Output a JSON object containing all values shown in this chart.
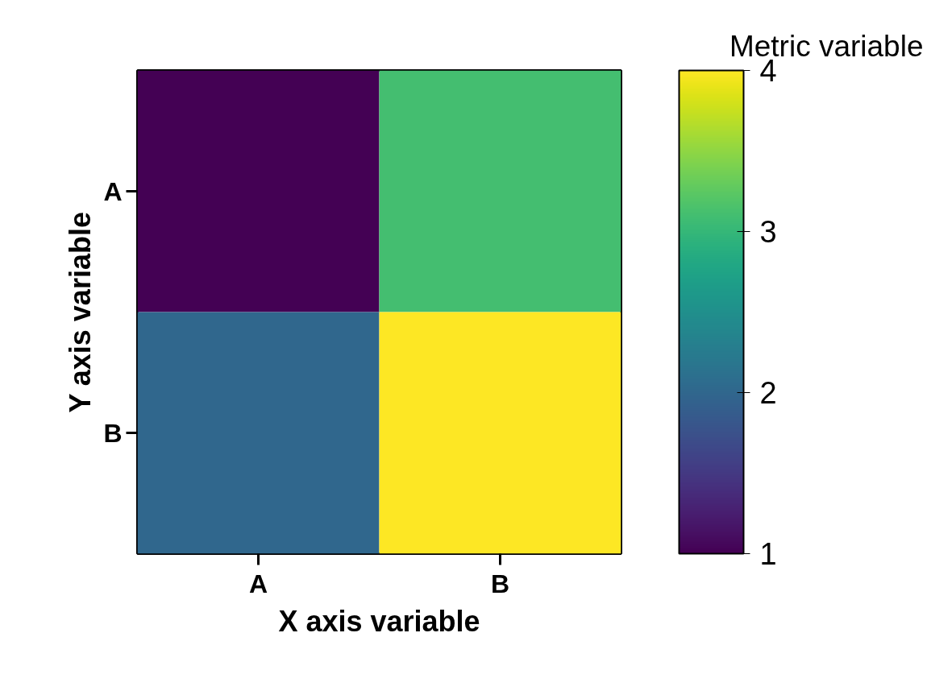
{
  "chart_data": {
    "type": "heatmap",
    "xlabel": "X axis variable",
    "ylabel": "Y axis variable",
    "clabel": "Metric variable",
    "categories": [
      "A",
      "B"
    ],
    "y_categories": [
      "A",
      "B"
    ],
    "cells": [
      [
        1,
        3.1
      ],
      [
        2,
        4
      ]
    ],
    "clim": [
      1,
      4
    ],
    "cticks": [
      1,
      2,
      3,
      4
    ],
    "grid": false
  }
}
